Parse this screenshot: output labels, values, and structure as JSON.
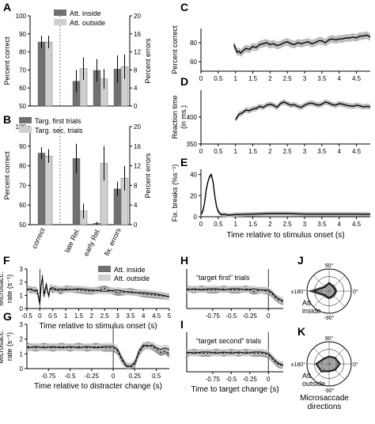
{
  "panel_letters": [
    "A",
    "B",
    "C",
    "D",
    "E",
    "F",
    "G",
    "H",
    "I",
    "J",
    "K"
  ],
  "legend_A": [
    "Att. inside",
    "Att. outside"
  ],
  "legend_B": [
    "Targ. first trials",
    "Targ. sec. trials"
  ],
  "legend_F": [
    "Att. inside",
    "Att. outside"
  ],
  "colors": {
    "dark": "#707070",
    "light": "#cfcfcf",
    "line": "#000000",
    "shade": "#bdbdbd"
  },
  "titles": {
    "H": "“target first” trials",
    "I": "“target second” trials"
  },
  "polar_labels": {
    "J": "Att.\ninside",
    "K": "Att.\noutside",
    "caption": "Microsaccade\ndirections",
    "top": "90°",
    "bottom": "-90°",
    "left": "±180°",
    "right": "0°"
  },
  "chart_data": [
    {
      "panel": "A",
      "type": "bar",
      "ylabel": "Percent correct",
      "y2label": "Percent errors",
      "ylim": [
        50,
        100
      ],
      "y2lim": [
        0,
        20
      ],
      "yticks": [
        "50",
        "60",
        "70",
        "80",
        "90",
        "100"
      ],
      "y2ticks": [
        "0",
        "4",
        "8",
        "12",
        "16",
        "20"
      ],
      "series": [
        {
          "name": "Att. inside",
          "values": [
            85.5,
            5.5,
            7.9,
            8.2
          ],
          "err": [
            3.5,
            2.5,
            2.5,
            3.0
          ]
        },
        {
          "name": "Att. outside",
          "values": [
            85.5,
            8.3,
            6.0,
            8.7
          ],
          "err": [
            3.5,
            2.5,
            2.2,
            2.7
          ]
        }
      ]
    },
    {
      "panel": "B",
      "type": "bar",
      "ylabel": "Percent correct",
      "y2label": "Percent errors",
      "ylim": [
        50,
        100
      ],
      "y2lim": [
        0,
        20
      ],
      "yticks": [
        "50",
        "60",
        "70",
        "80",
        "90",
        "100"
      ],
      "y2ticks": [
        "0",
        "4",
        "8",
        "12",
        "16",
        "20"
      ],
      "categories": [
        "correct",
        "late Rel.",
        "early Rel.",
        "fix. errors"
      ],
      "series": [
        {
          "name": "Targ. first trials",
          "values": [
            86.5,
            13.5,
            0.3,
            7.3
          ],
          "err": [
            3.0,
            3.0,
            0.3,
            1.5
          ]
        },
        {
          "name": "Targ. sec. trials",
          "values": [
            85.0,
            2.8,
            12.5,
            9.5
          ],
          "err": [
            3.5,
            1.5,
            3.5,
            2.5
          ]
        }
      ]
    },
    {
      "panel": "C",
      "type": "line",
      "ylabel": "Percent correct",
      "ylim": [
        50,
        95
      ],
      "xlim": [
        0,
        4.9
      ],
      "yticks": [
        "60",
        "80"
      ],
      "xticks": [
        "0",
        "0.5",
        "1",
        "1.5",
        "2",
        "2.5",
        "3",
        "3.5",
        "4",
        "4.5"
      ],
      "x": [
        0.95,
        1.0,
        1.05,
        1.1,
        1.15,
        1.2,
        1.3,
        1.4,
        1.5,
        1.6,
        1.7,
        1.8,
        1.9,
        2.0,
        2.1,
        2.2,
        2.3,
        2.4,
        2.5,
        2.6,
        2.7,
        2.8,
        2.9,
        3.0,
        3.1,
        3.2,
        3.3,
        3.4,
        3.5,
        3.6,
        3.7,
        3.8,
        3.9,
        4.0,
        4.1,
        4.2,
        4.3,
        4.4,
        4.5,
        4.6,
        4.7,
        4.8,
        4.9
      ],
      "y": [
        78,
        74,
        70,
        71,
        69,
        71,
        74,
        73,
        76,
        75,
        78,
        79,
        80,
        78,
        79,
        77,
        78,
        80,
        81,
        79,
        78,
        80,
        79,
        80,
        81,
        79,
        80,
        82,
        82,
        80,
        83,
        84,
        83,
        84,
        84,
        85,
        85,
        86,
        85,
        87,
        87,
        88,
        86
      ],
      "band": 4
    },
    {
      "panel": "D",
      "type": "line",
      "ylabel": "Reaction time\n(in ms.)",
      "ylim": [
        350,
        450
      ],
      "xlim": [
        0,
        4.9
      ],
      "yticks": [
        "350",
        "400"
      ],
      "xticks": [
        "0",
        "0.5",
        "1",
        "1.5",
        "2",
        "2.5",
        "3",
        "3.5",
        "4",
        "4.5"
      ],
      "x": [
        1.0,
        1.05,
        1.1,
        1.2,
        1.3,
        1.4,
        1.5,
        1.6,
        1.7,
        1.8,
        1.9,
        2.0,
        2.1,
        2.2,
        2.3,
        2.4,
        2.5,
        2.6,
        2.7,
        2.8,
        2.9,
        3.0,
        3.1,
        3.2,
        3.3,
        3.4,
        3.5,
        3.6,
        3.7,
        3.8,
        3.9,
        4.0,
        4.1,
        4.2,
        4.3,
        4.4,
        4.5,
        4.6,
        4.7,
        4.8,
        4.9
      ],
      "y": [
        395,
        400,
        405,
        408,
        413,
        412,
        415,
        416,
        420,
        418,
        422,
        424,
        422,
        418,
        425,
        428,
        425,
        422,
        423,
        420,
        418,
        422,
        425,
        426,
        424,
        422,
        424,
        428,
        426,
        423,
        422,
        425,
        424,
        422,
        421,
        420,
        422,
        421,
        419,
        420,
        419
      ],
      "band": 5
    },
    {
      "panel": "E",
      "type": "line",
      "ylabel": "Fix. breaks (%s⁻¹)",
      "ylim": [
        0,
        45
      ],
      "xlim": [
        0,
        4.9
      ],
      "yticks": [
        "0",
        "20",
        "40"
      ],
      "xticks": [
        "0",
        "0.5",
        "1",
        "1.5",
        "2",
        "2.5",
        "3",
        "3.5",
        "4",
        "4.5"
      ],
      "xlabel": "Time relative to stimulus onset (s)",
      "x": [
        0,
        0.05,
        0.1,
        0.15,
        0.2,
        0.25,
        0.3,
        0.35,
        0.4,
        0.45,
        0.5,
        0.55,
        0.6,
        0.7,
        0.8,
        1.0,
        1.5,
        2.0,
        2.5,
        3.0,
        3.5,
        4.0,
        4.5,
        4.9
      ],
      "y": [
        2,
        5,
        12,
        25,
        33,
        38,
        40,
        33,
        20,
        10,
        5,
        3,
        2,
        2,
        1.5,
        2,
        2.5,
        3,
        3,
        2.5,
        2.5,
        2.5,
        2.5,
        2.3
      ],
      "band": 2
    },
    {
      "panel": "F",
      "type": "line",
      "ylabel": "Microsacc.\nrate (s⁻¹)",
      "ylim": [
        0,
        3
      ],
      "xlim": [
        -0.5,
        5
      ],
      "yticks": [
        "0",
        "1",
        "2",
        "3"
      ],
      "xticks": [
        "-0.5",
        "0",
        "0.5",
        "1",
        "1.5",
        "2",
        "2.5",
        "3",
        "3.5",
        "4",
        "4.5",
        "5"
      ],
      "xlabel": "Time relative to stimulus onset (s)",
      "x": [
        -0.5,
        -0.35,
        -0.2,
        -0.1,
        0,
        0.05,
        0.1,
        0.15,
        0.2,
        0.25,
        0.3,
        0.35,
        0.4,
        0.5,
        0.6,
        0.8,
        1.0,
        1.5,
        2.0,
        2.5,
        3.0,
        3.5,
        4.0,
        4.5,
        5.0
      ],
      "series": [
        {
          "name": "Att. inside",
          "y": [
            1.5,
            1.4,
            1.4,
            1.3,
            0.3,
            1.7,
            2.5,
            1.0,
            1.2,
            1.8,
            1.3,
            0.9,
            1.6,
            1.4,
            1.5,
            1.3,
            1.5,
            1.4,
            1.3,
            1.5,
            1.2,
            1.3,
            1.1,
            1.0,
            0.9
          ]
        },
        {
          "name": "Att. outside",
          "y": [
            1.4,
            1.5,
            1.3,
            1.4,
            0.4,
            1.8,
            2.3,
            1.1,
            1.4,
            1.9,
            1.2,
            1.0,
            1.5,
            1.6,
            1.4,
            1.5,
            1.4,
            1.5,
            1.4,
            1.3,
            1.4,
            1.2,
            1.2,
            1.1,
            0.9
          ]
        }
      ]
    },
    {
      "panel": "G",
      "type": "line",
      "ylabel": "Microsacc.\nrate (s⁻¹)",
      "ylim": [
        0,
        3
      ],
      "xlim": [
        -1,
        0.65
      ],
      "yticks": [
        "0",
        "1",
        "2",
        "3"
      ],
      "xticks": [
        "-0.75",
        "-0.5",
        "-0.25",
        "0",
        "0.25",
        "0.5"
      ],
      "xlabel": "Time relative to distracter change (s)",
      "x": [
        -1.0,
        -0.9,
        -0.8,
        -0.7,
        -0.6,
        -0.5,
        -0.4,
        -0.3,
        -0.2,
        -0.1,
        0,
        0.05,
        0.1,
        0.15,
        0.2,
        0.25,
        0.3,
        0.35,
        0.4,
        0.45,
        0.5,
        0.55,
        0.6,
        0.65
      ],
      "series": [
        {
          "name": "Att. inside",
          "y": [
            1.5,
            1.4,
            1.5,
            1.4,
            1.5,
            1.4,
            1.5,
            1.4,
            1.5,
            1.4,
            1.4,
            1.2,
            0.6,
            0.15,
            0.1,
            0.3,
            1.1,
            1.5,
            1.6,
            1.5,
            1.3,
            1.1,
            1.2,
            1.0
          ]
        },
        {
          "name": "Att. outside",
          "y": [
            1.4,
            1.5,
            1.4,
            1.5,
            1.4,
            1.5,
            1.4,
            1.5,
            1.4,
            1.5,
            1.5,
            1.3,
            0.7,
            0.2,
            0.15,
            0.4,
            1.2,
            1.6,
            1.5,
            1.6,
            1.4,
            1.3,
            1.4,
            1.3
          ]
        }
      ]
    },
    {
      "panel": "H",
      "type": "line",
      "ylabel": "",
      "ylim": [
        0,
        3
      ],
      "xlim": [
        -1.1,
        0.2
      ],
      "xticks": [
        "-0.75",
        "-0.5",
        "-0.25",
        "0"
      ],
      "x": [
        -1.1,
        -1.0,
        -0.9,
        -0.8,
        -0.7,
        -0.6,
        -0.5,
        -0.4,
        -0.3,
        -0.2,
        -0.1,
        0,
        0.05,
        0.1,
        0.15,
        0.2
      ],
      "series": [
        {
          "name": "Att. inside",
          "y": [
            1.5,
            1.4,
            1.5,
            1.4,
            1.4,
            1.5,
            1.4,
            1.4,
            1.5,
            1.3,
            1.4,
            1.3,
            1.1,
            0.8,
            0.6,
            0.5
          ]
        },
        {
          "name": "Att. outside",
          "y": [
            1.4,
            1.5,
            1.4,
            1.5,
            1.5,
            1.4,
            1.5,
            1.5,
            1.4,
            1.5,
            1.4,
            1.4,
            1.2,
            0.9,
            0.7,
            0.6
          ]
        }
      ]
    },
    {
      "panel": "I",
      "type": "line",
      "ylabel": "",
      "ylim": [
        0,
        3
      ],
      "xlim": [
        -1.1,
        0.2
      ],
      "xticks": [
        "-0.75",
        "-0.5",
        "-0.25",
        "0"
      ],
      "xlabel": "Time to target change (s)",
      "x": [
        -1.1,
        -1.0,
        -0.9,
        -0.8,
        -0.7,
        -0.6,
        -0.5,
        -0.4,
        -0.3,
        -0.2,
        -0.1,
        0,
        0.05,
        0.1,
        0.15,
        0.2
      ],
      "series": [
        {
          "name": "Att. inside",
          "y": [
            1.4,
            1.5,
            1.4,
            1.4,
            1.5,
            1.4,
            1.5,
            1.4,
            1.5,
            1.4,
            1.4,
            1.3,
            1.0,
            0.7,
            0.5,
            0.5
          ]
        },
        {
          "name": "Att. outside",
          "y": [
            1.5,
            1.4,
            1.5,
            1.5,
            1.4,
            1.5,
            1.4,
            1.5,
            1.4,
            1.5,
            1.5,
            1.4,
            1.1,
            0.8,
            0.6,
            0.5
          ]
        }
      ]
    },
    {
      "panel": "J",
      "type": "polar",
      "angles_deg": [
        0,
        45,
        90,
        135,
        180,
        225,
        270,
        315
      ],
      "series": [
        {
          "name": "Att. inside",
          "r": [
            0.35,
            0.3,
            0.4,
            0.3,
            0.9,
            0.3,
            0.35,
            0.3
          ]
        },
        {
          "name": "Att. outside",
          "r": [
            0.3,
            0.25,
            0.35,
            0.25,
            0.7,
            0.25,
            0.3,
            0.25
          ]
        }
      ]
    },
    {
      "panel": "K",
      "type": "polar",
      "angles_deg": [
        0,
        45,
        90,
        135,
        180,
        225,
        270,
        315
      ],
      "series": [
        {
          "name": "Att. inside",
          "r": [
            0.45,
            0.35,
            0.3,
            0.3,
            0.55,
            0.45,
            0.3,
            0.35
          ]
        },
        {
          "name": "Att. outside",
          "r": [
            0.5,
            0.4,
            0.35,
            0.35,
            0.6,
            0.5,
            0.35,
            0.4
          ]
        }
      ]
    }
  ]
}
